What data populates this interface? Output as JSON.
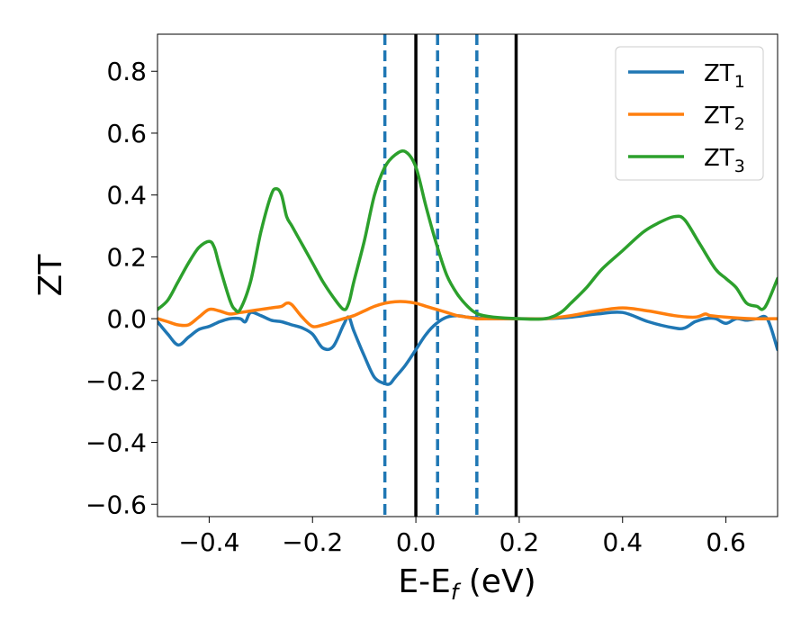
{
  "chart_data": {
    "type": "line",
    "title": "",
    "xlabel": "E-E",
    "xlabel_sub": "f",
    "xlabel_unit": " (eV)",
    "ylabel": "ZT",
    "xlim": [
      -0.5,
      0.7
    ],
    "ylim": [
      -0.64,
      0.92
    ],
    "xticks": [
      -0.4,
      -0.2,
      0.0,
      0.2,
      0.4,
      0.6
    ],
    "xtick_labels": [
      "−0.4",
      "−0.2",
      "0.0",
      "0.2",
      "0.4",
      "0.6"
    ],
    "yticks": [
      -0.6,
      -0.4,
      -0.2,
      0.0,
      0.2,
      0.4,
      0.6,
      0.8
    ],
    "ytick_labels": [
      "−0.6",
      "−0.4",
      "−0.2",
      "0.0",
      "0.2",
      "0.4",
      "0.6",
      "0.8"
    ],
    "grid": false,
    "legend_position": "top-right",
    "series": [
      {
        "name": "ZT",
        "name_sub": "1",
        "color": "#1f77b4",
        "x": [
          -0.5,
          -0.48,
          -0.46,
          -0.44,
          -0.42,
          -0.4,
          -0.38,
          -0.36,
          -0.34,
          -0.33,
          -0.32,
          -0.3,
          -0.28,
          -0.26,
          -0.24,
          -0.22,
          -0.2,
          -0.18,
          -0.16,
          -0.14,
          -0.13,
          -0.12,
          -0.1,
          -0.08,
          -0.06,
          -0.05,
          -0.04,
          -0.02,
          0.0,
          0.02,
          0.04,
          0.06,
          0.08,
          0.1,
          0.12,
          0.14,
          0.16,
          0.18,
          0.2,
          0.25,
          0.3,
          0.35,
          0.4,
          0.45,
          0.5,
          0.52,
          0.54,
          0.56,
          0.58,
          0.6,
          0.62,
          0.64,
          0.66,
          0.68,
          0.7
        ],
        "y": [
          -0.01,
          -0.05,
          -0.085,
          -0.06,
          -0.035,
          -0.025,
          -0.01,
          0.0,
          0.0,
          -0.01,
          0.02,
          0.01,
          -0.005,
          -0.01,
          -0.02,
          -0.03,
          -0.05,
          -0.095,
          -0.09,
          -0.02,
          0.005,
          -0.04,
          -0.12,
          -0.19,
          -0.21,
          -0.21,
          -0.19,
          -0.15,
          -0.1,
          -0.05,
          -0.015,
          0.005,
          0.01,
          0.005,
          0.002,
          0.0,
          0.0,
          0.0,
          0.0,
          0.0,
          0.005,
          0.015,
          0.02,
          -0.01,
          -0.03,
          -0.03,
          -0.01,
          0.0,
          0.0,
          -0.015,
          0.0,
          -0.005,
          0.0,
          0.0,
          -0.1
        ]
      },
      {
        "name": "ZT",
        "name_sub": "2",
        "color": "#ff7f0e",
        "x": [
          -0.5,
          -0.48,
          -0.46,
          -0.44,
          -0.42,
          -0.4,
          -0.38,
          -0.36,
          -0.34,
          -0.32,
          -0.3,
          -0.28,
          -0.26,
          -0.25,
          -0.24,
          -0.22,
          -0.2,
          -0.18,
          -0.16,
          -0.14,
          -0.12,
          -0.1,
          -0.08,
          -0.06,
          -0.04,
          -0.02,
          0.0,
          0.02,
          0.04,
          0.06,
          0.08,
          0.1,
          0.12,
          0.15,
          0.2,
          0.25,
          0.3,
          0.35,
          0.4,
          0.45,
          0.5,
          0.54,
          0.56,
          0.57,
          0.6,
          0.65,
          0.7
        ],
        "y": [
          0.0,
          -0.01,
          -0.02,
          -0.02,
          0.005,
          0.03,
          0.025,
          0.015,
          0.02,
          0.025,
          0.03,
          0.035,
          0.04,
          0.05,
          0.045,
          0.005,
          -0.025,
          -0.02,
          -0.01,
          0.0,
          0.01,
          0.025,
          0.04,
          0.05,
          0.055,
          0.055,
          0.05,
          0.04,
          0.03,
          0.02,
          0.01,
          0.005,
          0.0,
          0.0,
          0.0,
          0.0,
          0.01,
          0.025,
          0.035,
          0.025,
          0.01,
          0.005,
          0.015,
          0.01,
          0.005,
          0.0,
          0.0
        ]
      },
      {
        "name": "ZT",
        "name_sub": "3",
        "color": "#2ca02c",
        "x": [
          -0.5,
          -0.48,
          -0.46,
          -0.44,
          -0.42,
          -0.4,
          -0.39,
          -0.38,
          -0.36,
          -0.35,
          -0.34,
          -0.32,
          -0.3,
          -0.28,
          -0.27,
          -0.26,
          -0.25,
          -0.24,
          -0.22,
          -0.2,
          -0.18,
          -0.16,
          -0.14,
          -0.13,
          -0.12,
          -0.1,
          -0.08,
          -0.06,
          -0.04,
          -0.02,
          0.0,
          0.02,
          0.04,
          0.06,
          0.08,
          0.1,
          0.12,
          0.15,
          0.2,
          0.25,
          0.28,
          0.3,
          0.33,
          0.36,
          0.4,
          0.44,
          0.47,
          0.5,
          0.52,
          0.55,
          0.58,
          0.6,
          0.62,
          0.64,
          0.66,
          0.67,
          0.68,
          0.7
        ],
        "y": [
          0.03,
          0.06,
          0.12,
          0.18,
          0.23,
          0.25,
          0.23,
          0.17,
          0.06,
          0.03,
          0.03,
          0.12,
          0.28,
          0.4,
          0.42,
          0.4,
          0.33,
          0.3,
          0.24,
          0.18,
          0.12,
          0.07,
          0.03,
          0.05,
          0.12,
          0.25,
          0.4,
          0.49,
          0.53,
          0.54,
          0.49,
          0.36,
          0.24,
          0.14,
          0.08,
          0.04,
          0.015,
          0.005,
          0.0,
          0.0,
          0.02,
          0.05,
          0.1,
          0.16,
          0.22,
          0.28,
          0.31,
          0.33,
          0.32,
          0.24,
          0.16,
          0.13,
          0.1,
          0.05,
          0.04,
          0.03,
          0.05,
          0.13
        ]
      }
    ],
    "vlines": [
      {
        "x": -0.06,
        "style": "dashed",
        "color": "#1f77b4"
      },
      {
        "x": 0.0,
        "style": "solid",
        "color": "#000000"
      },
      {
        "x": 0.042,
        "style": "dashed",
        "color": "#1f77b4"
      },
      {
        "x": 0.118,
        "style": "dashed",
        "color": "#1f77b4"
      },
      {
        "x": 0.194,
        "style": "solid",
        "color": "#000000"
      }
    ]
  }
}
